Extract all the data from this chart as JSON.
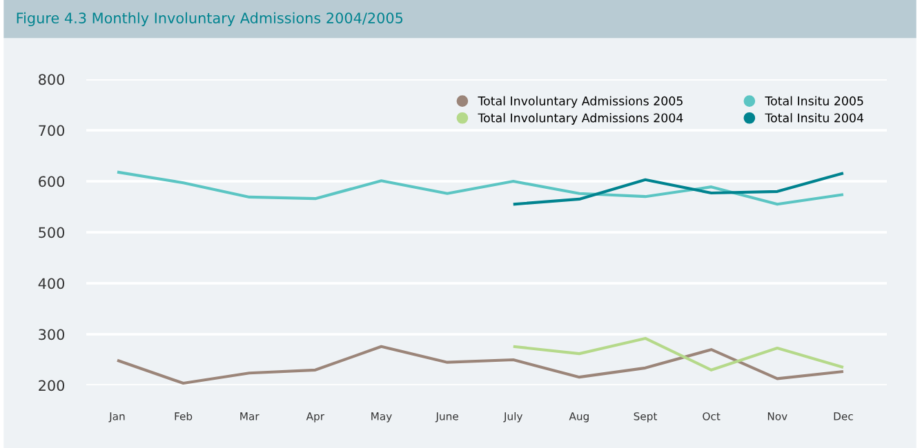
{
  "chart_data": {
    "type": "line",
    "title": "Figure 4.3 Monthly Involuntary Admissions 2004/2005",
    "categories": [
      "Jan",
      "Feb",
      "Mar",
      "Apr",
      "May",
      "June",
      "July",
      "Aug",
      "Sept",
      "Oct",
      "Nov",
      "Dec"
    ],
    "series": [
      {
        "name": "Total Involuntary Admissions 2005",
        "color": "#9b8579",
        "values": [
          249,
          204,
          224,
          230,
          276,
          245,
          250,
          216,
          234,
          270,
          213,
          227
        ]
      },
      {
        "name": "Total Involuntary Admissions 2004",
        "color": "#b5d98a",
        "values": [
          null,
          null,
          null,
          null,
          null,
          null,
          276,
          262,
          292,
          230,
          273,
          235
        ]
      },
      {
        "name": "Total Insitu 2005",
        "color": "#5bc5c3",
        "values": [
          618,
          597,
          569,
          566,
          601,
          576,
          600,
          576,
          570,
          589,
          555,
          574
        ]
      },
      {
        "name": "Total Insitu 2004",
        "color": "#00838f",
        "values": [
          null,
          null,
          null,
          null,
          null,
          null,
          555,
          565,
          603,
          577,
          580,
          616
        ]
      }
    ],
    "ylim": [
      200,
      800
    ],
    "yticks": [
      200,
      300,
      400,
      500,
      600,
      700,
      800
    ],
    "grid": "y",
    "legend": "top right",
    "marker": "none",
    "line_style": "solid"
  }
}
